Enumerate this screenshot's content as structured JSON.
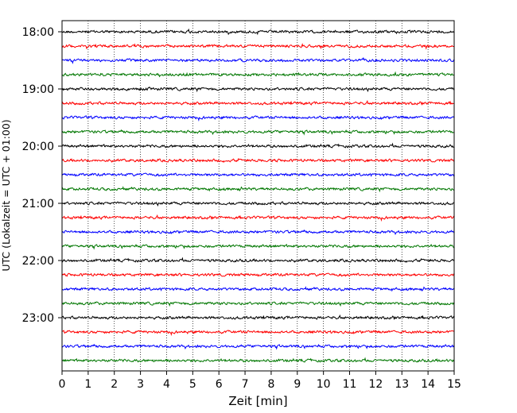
{
  "chart_data": {
    "type": "line",
    "title": "",
    "xlabel": "Zeit  [min]",
    "ylabel": "UTC (Lokalzeit = UTC + 01:00)",
    "xlim": [
      0,
      15
    ],
    "x_ticks": [
      0,
      1,
      2,
      3,
      4,
      5,
      6,
      7,
      8,
      9,
      10,
      11,
      12,
      13,
      14,
      15
    ],
    "x_tick_labels": [
      "0",
      "1",
      "2",
      "3",
      "4",
      "5",
      "6",
      "7",
      "8",
      "9",
      "10",
      "11",
      "12",
      "13",
      "14",
      "15"
    ],
    "ylim_hours": [
      18.0,
      24.0
    ],
    "y_ticks_hours": [
      18,
      19,
      20,
      21,
      22,
      23
    ],
    "y_tick_labels": [
      "18:00",
      "19:00",
      "20:00",
      "21:00",
      "22:00",
      "23:00"
    ],
    "x_grid": "dotted vertical lines at each minute",
    "traces_per_hour": 4,
    "trace_minutes": 15,
    "trace_colors": [
      "#000000",
      "#ff0000",
      "#0000ff",
      "#007700"
    ],
    "trace_start_times": [
      "18:00",
      "18:15",
      "18:30",
      "18:45",
      "19:00",
      "19:15",
      "19:30",
      "19:45",
      "20:00",
      "20:15",
      "20:30",
      "20:45",
      "21:00",
      "21:15",
      "21:30",
      "21:45",
      "22:00",
      "22:15",
      "22:30",
      "22:45",
      "23:00",
      "23:15",
      "23:30",
      "23:45"
    ]
  }
}
